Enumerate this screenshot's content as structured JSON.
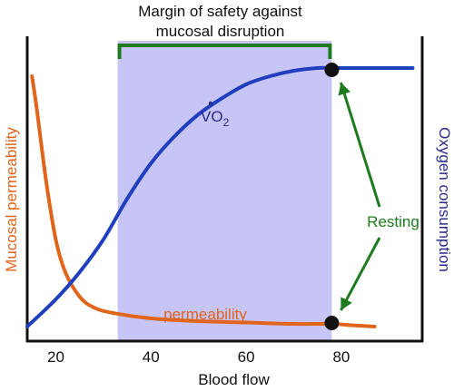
{
  "chart_data": {
    "type": "line",
    "xlabel": "Blood flow",
    "ylabel_left": "Mucosal permeability",
    "ylabel_right": "Oxygen consumption",
    "xlim": [
      14,
      97
    ],
    "x_ticks": [
      "20",
      "40",
      "60",
      "80"
    ],
    "ylim": [
      0,
      1
    ],
    "shaded_region": {
      "x_start": 33,
      "x_end": 78,
      "color": "#c7c5f5"
    },
    "bracket_label": [
      "Margin of safety against",
      "mucosal disruption"
    ],
    "resting_label": "Resting",
    "resting_x": 78,
    "series": [
      {
        "name": "VO2",
        "label": "VO",
        "label_subscript": "2",
        "color": "#1f3fbf",
        "x": [
          14,
          20,
          25,
          30,
          35,
          40,
          45,
          50,
          55,
          60,
          65,
          70,
          75,
          78,
          82,
          86,
          90,
          95
        ],
        "y": [
          0.02,
          0.12,
          0.22,
          0.34,
          0.49,
          0.62,
          0.72,
          0.8,
          0.86,
          0.91,
          0.94,
          0.96,
          0.97,
          0.97,
          0.97,
          0.97,
          0.97,
          0.97
        ]
      },
      {
        "name": "permeability",
        "label": "permeability",
        "color": "#e0641a",
        "x": [
          15,
          16,
          18,
          20,
          22,
          25,
          28,
          32,
          40,
          50,
          60,
          70,
          78,
          82,
          87
        ],
        "y": [
          0.94,
          0.82,
          0.55,
          0.34,
          0.22,
          0.13,
          0.09,
          0.07,
          0.05,
          0.04,
          0.035,
          0.03,
          0.03,
          0.025,
          0.02
        ]
      }
    ],
    "resting_points": [
      {
        "series": "VO2",
        "x": 78,
        "y": 0.97
      },
      {
        "series": "permeability",
        "x": 78,
        "y": 0.03
      }
    ],
    "colors": {
      "axis": "#111111",
      "bracket": "#1e7a1e",
      "resting": "#1e7a1e",
      "vo2_label": "#2a2a8a",
      "left_label": "#e0641a",
      "right_label": "#2a2a8a"
    }
  }
}
